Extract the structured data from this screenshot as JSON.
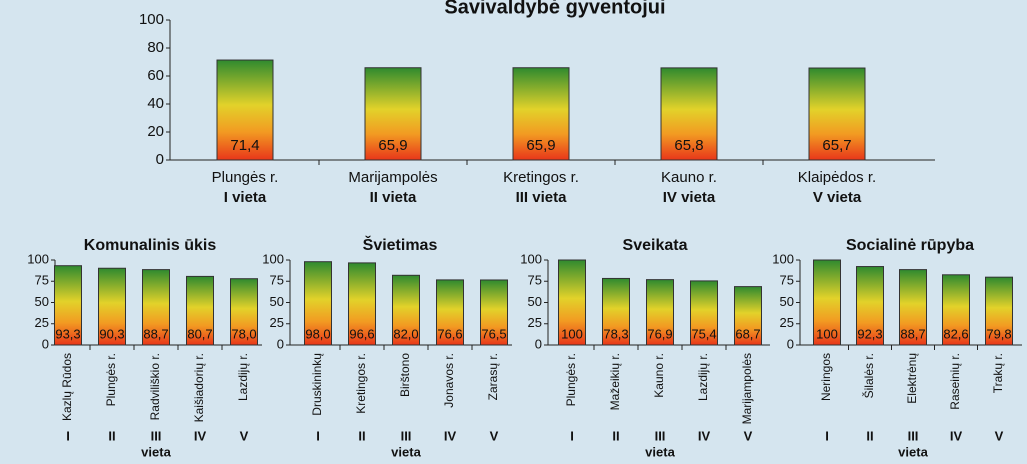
{
  "chart_data": [
    {
      "type": "bar",
      "title": "Savivaldybė gyventojui",
      "categories": [
        "Plungės r.",
        "Marijampolės",
        "Kretingos r.",
        "Kauno r.",
        "Klaipėdos r."
      ],
      "ranks": [
        "I vieta",
        "II vieta",
        "III vieta",
        "IV vieta",
        "V vieta"
      ],
      "values": [
        71.4,
        65.9,
        65.9,
        65.8,
        65.7
      ],
      "value_labels": [
        "71,4",
        "65,9",
        "65,9",
        "65,8",
        "65,7"
      ],
      "ylim": [
        0,
        100
      ],
      "yticks": [
        0,
        20,
        40,
        60,
        80,
        100
      ]
    },
    {
      "type": "bar",
      "title": "Komunalinis ūkis",
      "categories": [
        "Kazlų Rūdos",
        "Plungės r.",
        "Radviliškio r.",
        "Kaišiadorių r.",
        "Lazdijų r."
      ],
      "ranks": [
        "I",
        "II",
        "III",
        "IV",
        "V"
      ],
      "rank_caption": "vieta",
      "values": [
        93.3,
        90.3,
        88.7,
        80.7,
        78.0
      ],
      "value_labels": [
        "93,3",
        "90,3",
        "88,7",
        "80,7",
        "78,0"
      ],
      "ylim": [
        0,
        100
      ],
      "yticks": [
        0,
        25,
        50,
        75,
        100
      ]
    },
    {
      "type": "bar",
      "title": "Švietimas",
      "categories": [
        "Druskininkų",
        "Kretingos r.",
        "Birštono",
        "Jonavos r.",
        "Zarasų r."
      ],
      "ranks": [
        "I",
        "II",
        "III",
        "IV",
        "V"
      ],
      "rank_caption": "vieta",
      "values": [
        98.0,
        96.6,
        82.0,
        76.6,
        76.5
      ],
      "value_labels": [
        "98,0",
        "96,6",
        "82,0",
        "76,6",
        "76,5"
      ],
      "ylim": [
        0,
        100
      ],
      "yticks": [
        0,
        25,
        50,
        75,
        100
      ]
    },
    {
      "type": "bar",
      "title": "Sveikata",
      "categories": [
        "Plungės r.",
        "Mažeikių r.",
        "Kauno r.",
        "Lazdijų r.",
        "Marijampolės"
      ],
      "ranks": [
        "I",
        "II",
        "III",
        "IV",
        "V"
      ],
      "rank_caption": "vieta",
      "values": [
        100,
        78.3,
        76.9,
        75.4,
        68.7
      ],
      "value_labels": [
        "100",
        "78,3",
        "76,9",
        "75,4",
        "68,7"
      ],
      "ylim": [
        0,
        100
      ],
      "yticks": [
        0,
        25,
        50,
        75,
        100
      ]
    },
    {
      "type": "bar",
      "title": "Socialinė rūpyba",
      "categories": [
        "Neringos",
        "Šilalės r.",
        "Elektrėnų",
        "Raseinių r.",
        "Trakų r."
      ],
      "ranks": [
        "I",
        "II",
        "III",
        "IV",
        "V"
      ],
      "rank_caption": "vieta",
      "values": [
        100,
        92.3,
        88.7,
        82.6,
        79.8
      ],
      "value_labels": [
        "100",
        "92,3",
        "88,7",
        "82,6",
        "79,8"
      ],
      "ylim": [
        0,
        100
      ],
      "yticks": [
        0,
        25,
        50,
        75,
        100
      ]
    }
  ]
}
